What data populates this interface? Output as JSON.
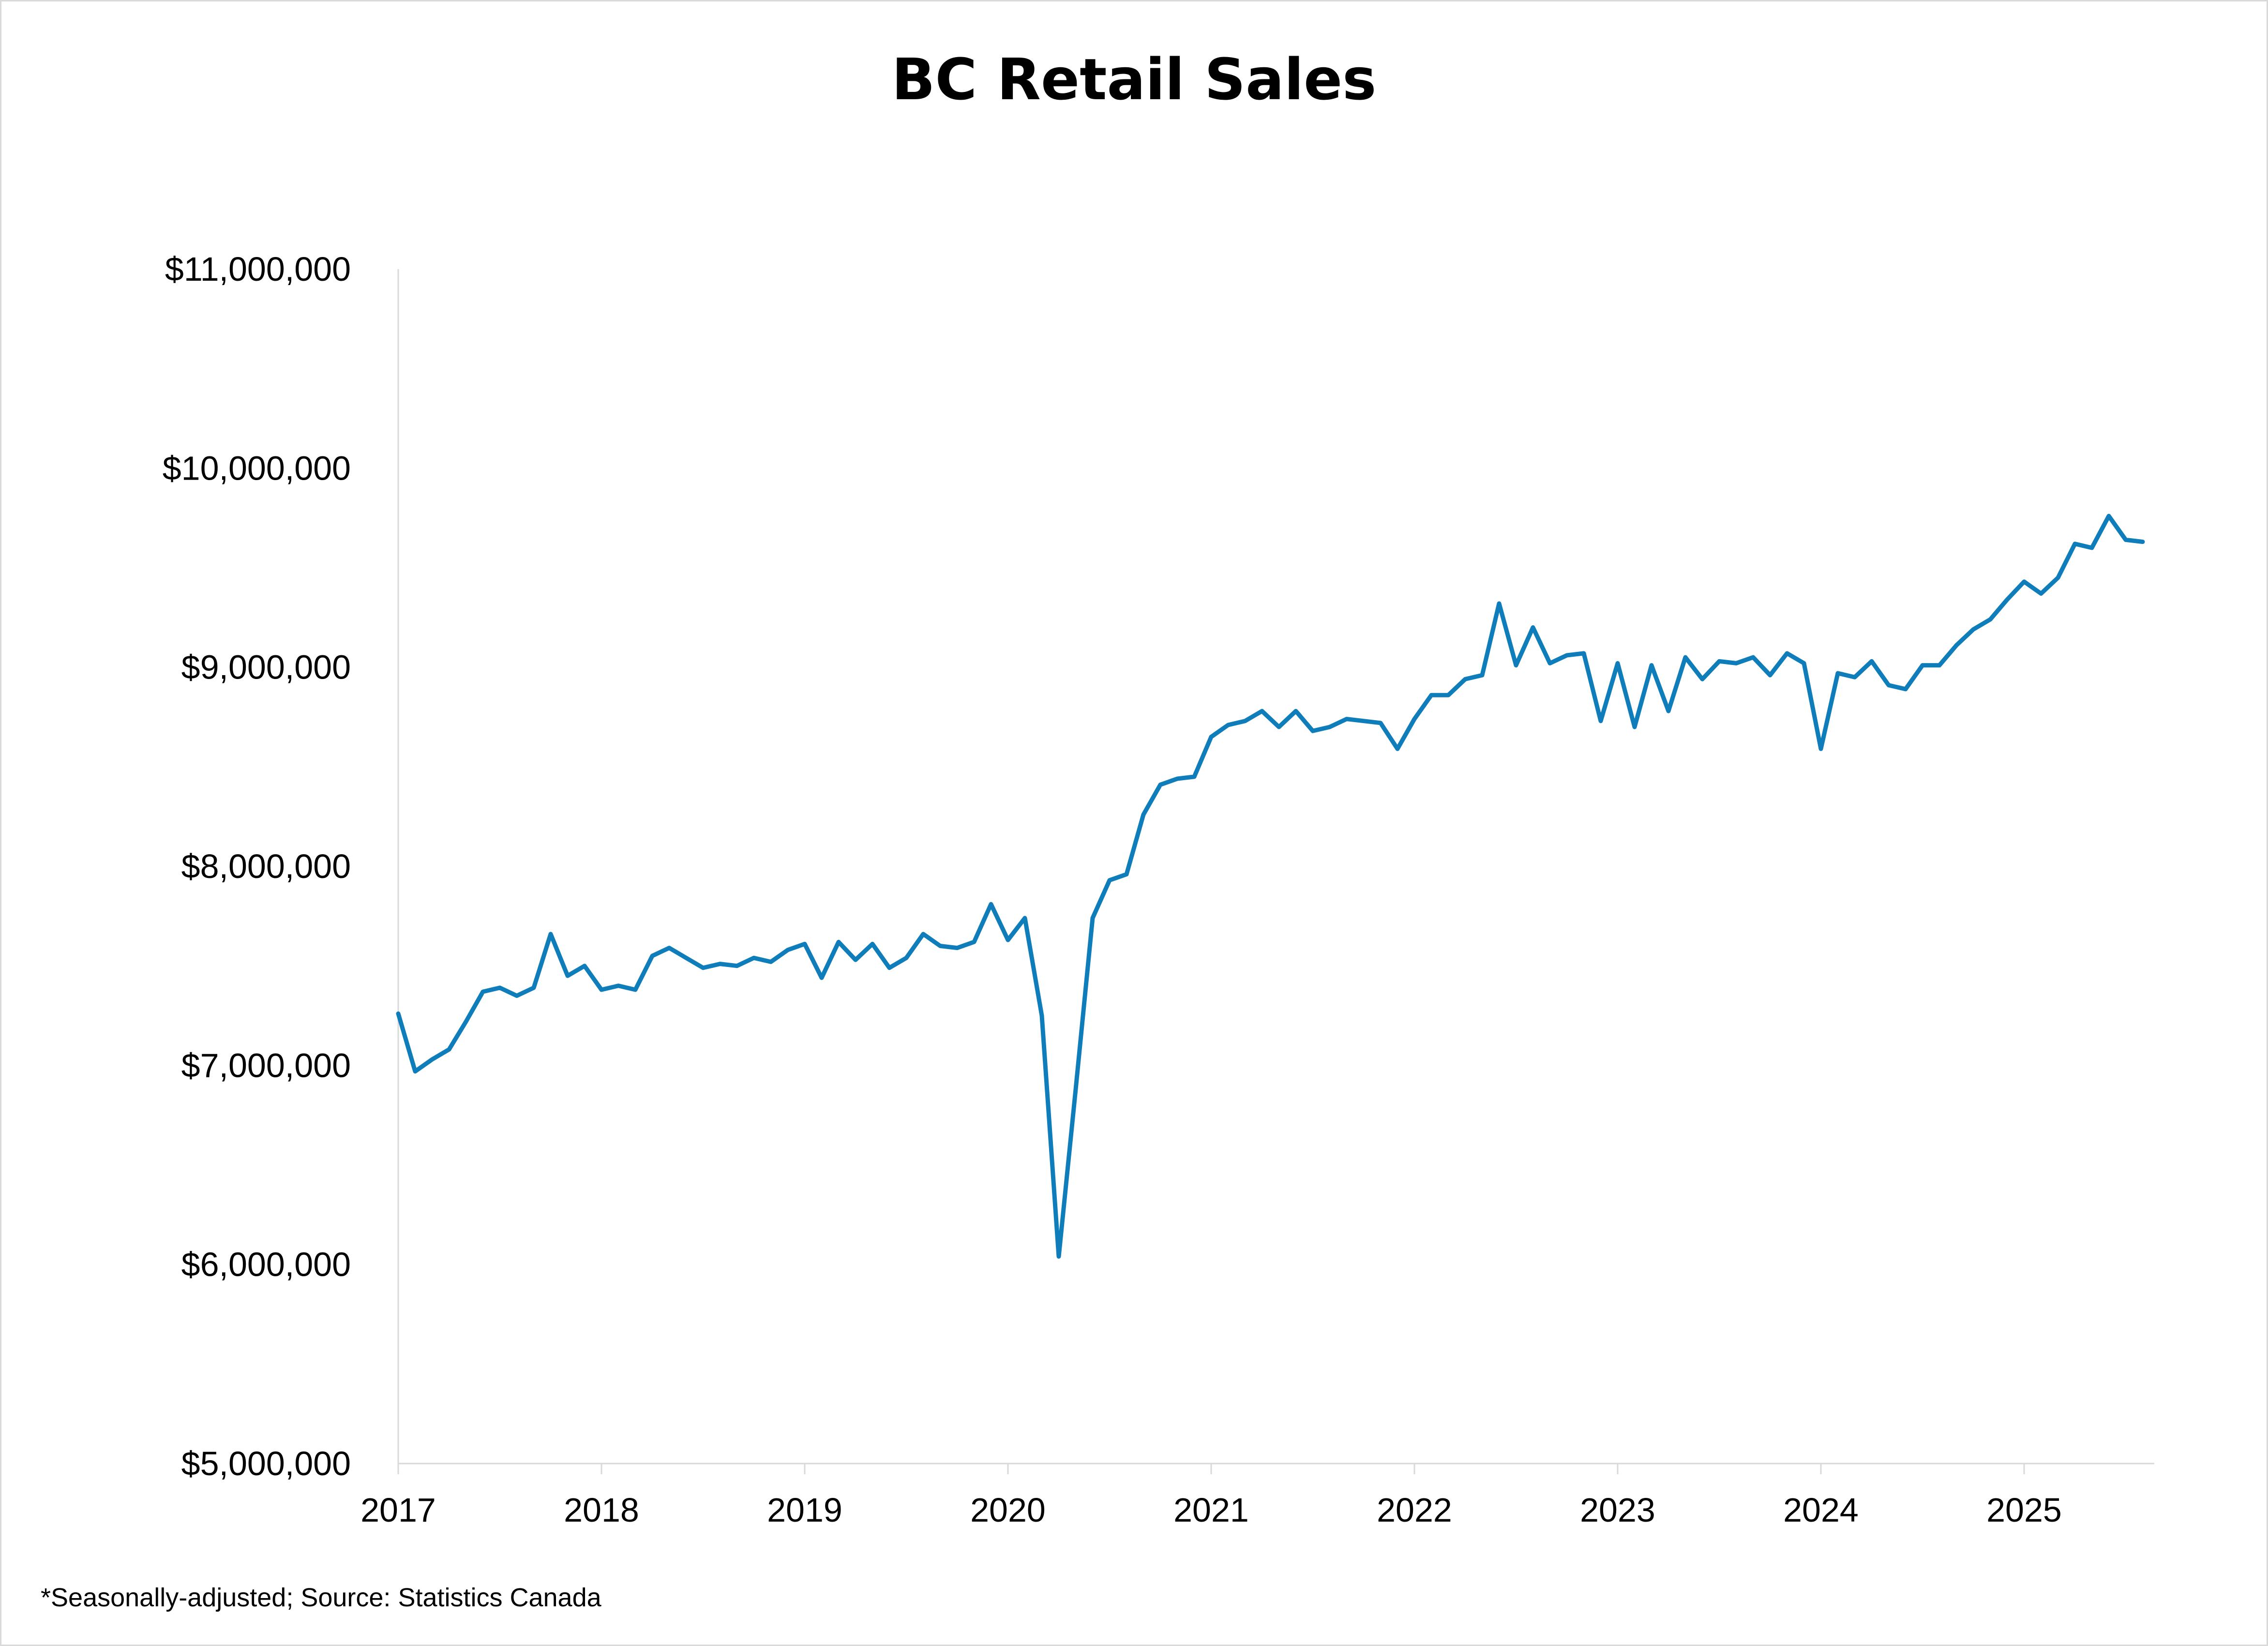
{
  "chart_data": {
    "type": "line",
    "title": "BC Retail Sales",
    "xlabel": "",
    "ylabel": "",
    "footnote": "*Seasonally-adjusted;  Source: Statistics Canada",
    "ylim": [
      5000000,
      11000000
    ],
    "y_ticks": [
      5000000,
      6000000,
      7000000,
      8000000,
      9000000,
      10000000,
      11000000
    ],
    "y_tick_labels": [
      "$5,000,000",
      "$6,000,000",
      "$7,000,000",
      "$8,000,000",
      "$9,000,000",
      "$10,000,000",
      "$11,000,000"
    ],
    "x_tick_labels": [
      "2017",
      "2018",
      "2019",
      "2020",
      "2021",
      "2022",
      "2023",
      "2024",
      "2025"
    ],
    "x_range": [
      "2017-01",
      "2025-08"
    ],
    "grid": false,
    "line_color": "#0f7dba",
    "axis_color": "#d9d9d9",
    "series": [
      {
        "name": "",
        "x": [
          "2017-01",
          "2017-02",
          "2017-03",
          "2017-04",
          "2017-05",
          "2017-06",
          "2017-07",
          "2017-08",
          "2017-09",
          "2017-10",
          "2017-11",
          "2017-12",
          "2018-01",
          "2018-02",
          "2018-03",
          "2018-04",
          "2018-05",
          "2018-06",
          "2018-07",
          "2018-08",
          "2018-09",
          "2018-10",
          "2018-11",
          "2018-12",
          "2019-01",
          "2019-02",
          "2019-03",
          "2019-04",
          "2019-05",
          "2019-06",
          "2019-07",
          "2019-08",
          "2019-09",
          "2019-10",
          "2019-11",
          "2019-12",
          "2020-01",
          "2020-02",
          "2020-03",
          "2020-04",
          "2020-05",
          "2020-06",
          "2020-07",
          "2020-08",
          "2020-09",
          "2020-10",
          "2020-11",
          "2020-12",
          "2021-01",
          "2021-02",
          "2021-03",
          "2021-04",
          "2021-05",
          "2021-06",
          "2021-07",
          "2021-08",
          "2021-09",
          "2021-10",
          "2021-11",
          "2021-12",
          "2022-01",
          "2022-02",
          "2022-03",
          "2022-04",
          "2022-05",
          "2022-06",
          "2022-07",
          "2022-08",
          "2022-09",
          "2022-10",
          "2022-11",
          "2022-12",
          "2023-01",
          "2023-02",
          "2023-03",
          "2023-04",
          "2023-05",
          "2023-06",
          "2023-07",
          "2023-08",
          "2023-09",
          "2023-10",
          "2023-11",
          "2023-12",
          "2024-01",
          "2024-02",
          "2024-03",
          "2024-04",
          "2024-05",
          "2024-06",
          "2024-07",
          "2024-08",
          "2024-09",
          "2024-10",
          "2024-11",
          "2024-12",
          "2025-01",
          "2025-02",
          "2025-03",
          "2025-04",
          "2025-05",
          "2025-06",
          "2025-07",
          "2025-08"
        ],
        "values": [
          7260000,
          6970000,
          7030000,
          7080000,
          7220000,
          7370000,
          7390000,
          7350000,
          7390000,
          7660000,
          7450000,
          7500000,
          7380000,
          7400000,
          7380000,
          7550000,
          7590000,
          7540000,
          7490000,
          7510000,
          7500000,
          7540000,
          7520000,
          7580000,
          7610000,
          7440000,
          7620000,
          7530000,
          7610000,
          7490000,
          7540000,
          7660000,
          7600000,
          7590000,
          7620000,
          7810000,
          7630000,
          7740000,
          7250000,
          6040000,
          6880000,
          7740000,
          7930000,
          7960000,
          8260000,
          8410000,
          8440000,
          8450000,
          8650000,
          8710000,
          8730000,
          8780000,
          8700000,
          8780000,
          8680000,
          8700000,
          8740000,
          8730000,
          8720000,
          8590000,
          8740000,
          8860000,
          8860000,
          8940000,
          8960000,
          9320000,
          9010000,
          9200000,
          9020000,
          9060000,
          9070000,
          8730000,
          9020000,
          8700000,
          9010000,
          8780000,
          9050000,
          8940000,
          9030000,
          9020000,
          9050000,
          8960000,
          9070000,
          9020000,
          8590000,
          8970000,
          8950000,
          9030000,
          8910000,
          8890000,
          9010000,
          9010000,
          9110000,
          9190000,
          9240000,
          9340000,
          9430000,
          9370000,
          9450000,
          9620000,
          9600000,
          9760000,
          9640000,
          9630000
        ]
      }
    ]
  }
}
